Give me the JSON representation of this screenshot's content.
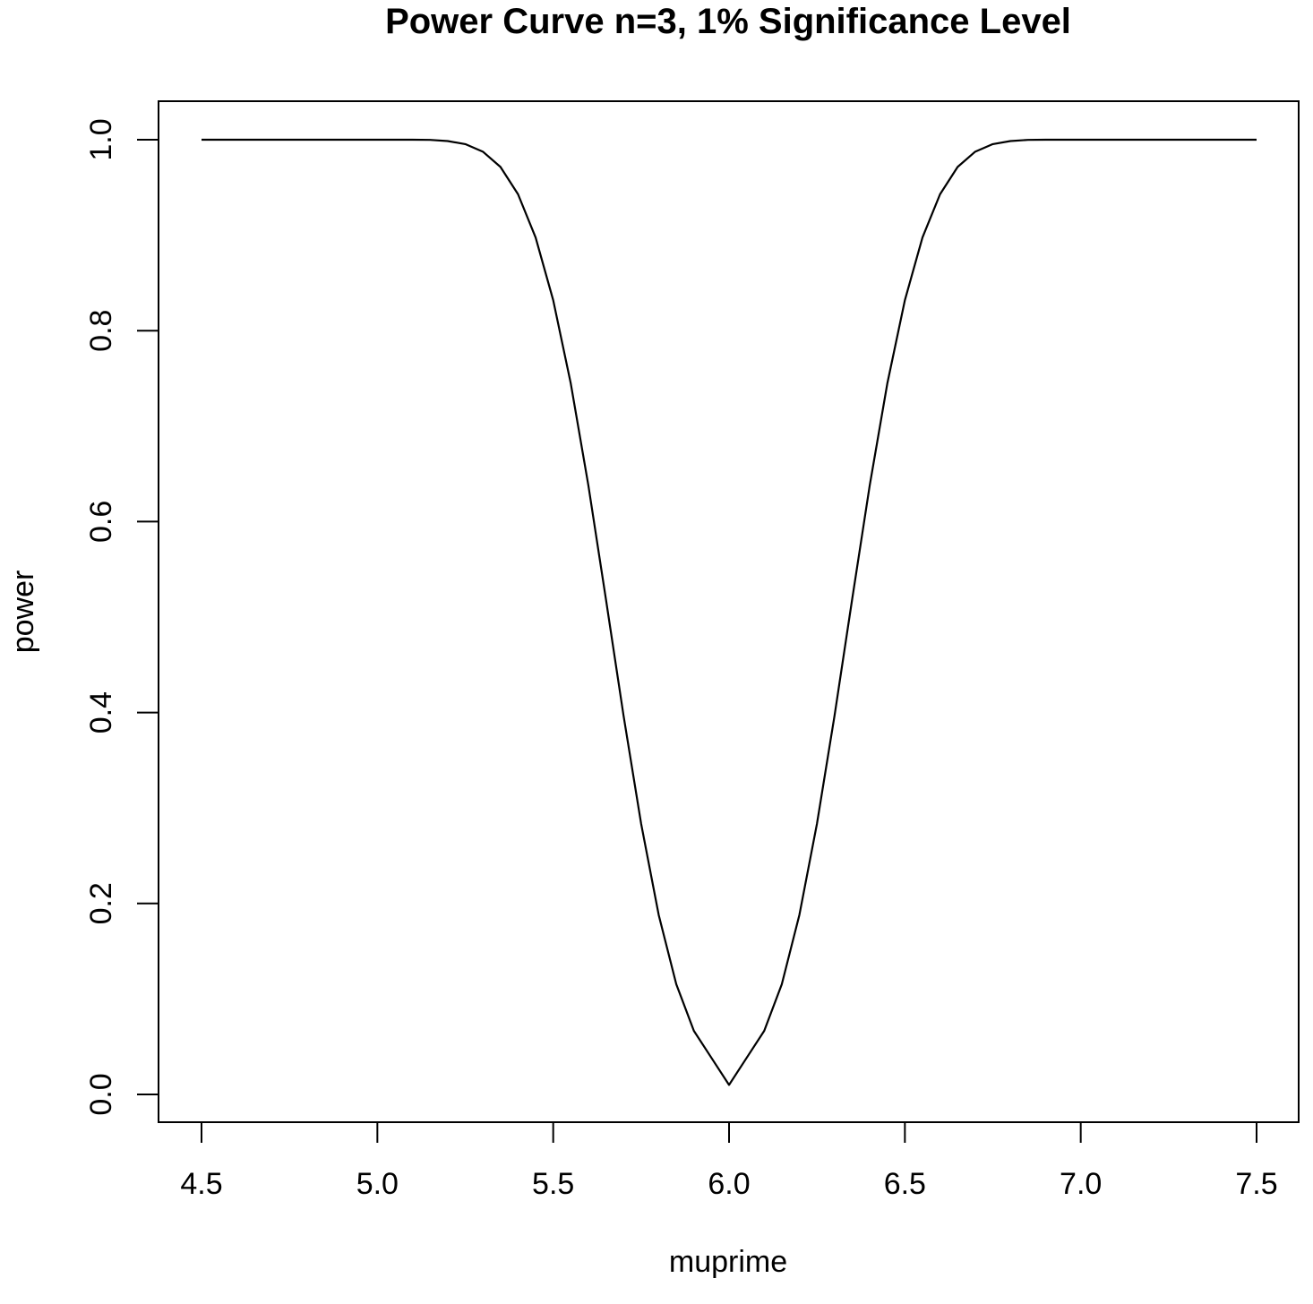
{
  "chart_data": {
    "type": "line",
    "title": "Power Curve n=3, 1% Significance Level",
    "xlabel": "muprime",
    "ylabel": "power",
    "xlim": [
      4.5,
      7.5
    ],
    "ylim": [
      0.0,
      1.0
    ],
    "x_ticks": [
      "4.5",
      "5.0",
      "5.5",
      "6.0",
      "6.5",
      "7.0",
      "7.5"
    ],
    "y_ticks": [
      "0.0",
      "0.2",
      "0.4",
      "0.6",
      "0.8",
      "1.0"
    ],
    "grid": false,
    "series": [
      {
        "name": "power",
        "color": "#000000",
        "x": [
          4.5,
          4.55,
          4.6,
          4.65,
          4.7,
          4.75,
          4.8,
          4.85,
          4.9,
          4.95,
          5.0,
          5.05,
          5.1,
          5.15,
          5.2,
          5.25,
          5.3,
          5.35,
          5.4,
          5.45,
          5.5,
          5.55,
          5.6,
          5.65,
          5.7,
          5.75,
          5.8,
          5.85,
          5.9,
          5.95,
          6.0,
          6.05,
          6.1,
          6.15,
          6.2,
          6.25,
          6.3,
          6.35,
          6.4,
          6.45,
          6.5,
          6.55,
          6.6,
          6.65,
          6.7,
          6.75,
          6.8,
          6.85,
          6.9,
          6.95,
          7.0,
          7.05,
          7.1,
          7.15,
          7.2,
          7.25,
          7.3,
          7.35,
          7.4,
          7.45,
          7.5
        ],
        "values": [
          1.0,
          1.0,
          1.0,
          1.0,
          1.0,
          1.0,
          1.0,
          1.0,
          1.0,
          1.0,
          1.0,
          1.0,
          1.0,
          0.9998,
          0.9986,
          0.9954,
          0.9875,
          0.9715,
          0.9429,
          0.8976,
          0.8319,
          0.7446,
          0.6379,
          0.5185,
          0.3968,
          0.2836,
          0.188,
          0.1154,
          0.0666,
          0.0383,
          0.01,
          0.0383,
          0.0666,
          0.1154,
          0.188,
          0.2836,
          0.3968,
          0.5185,
          0.6379,
          0.7446,
          0.8319,
          0.8976,
          0.9429,
          0.9715,
          0.9875,
          0.9954,
          0.9986,
          0.9998,
          1.0,
          1.0,
          1.0,
          1.0,
          1.0,
          1.0,
          1.0,
          1.0,
          1.0,
          1.0,
          1.0,
          1.0,
          1.0
        ]
      }
    ]
  }
}
